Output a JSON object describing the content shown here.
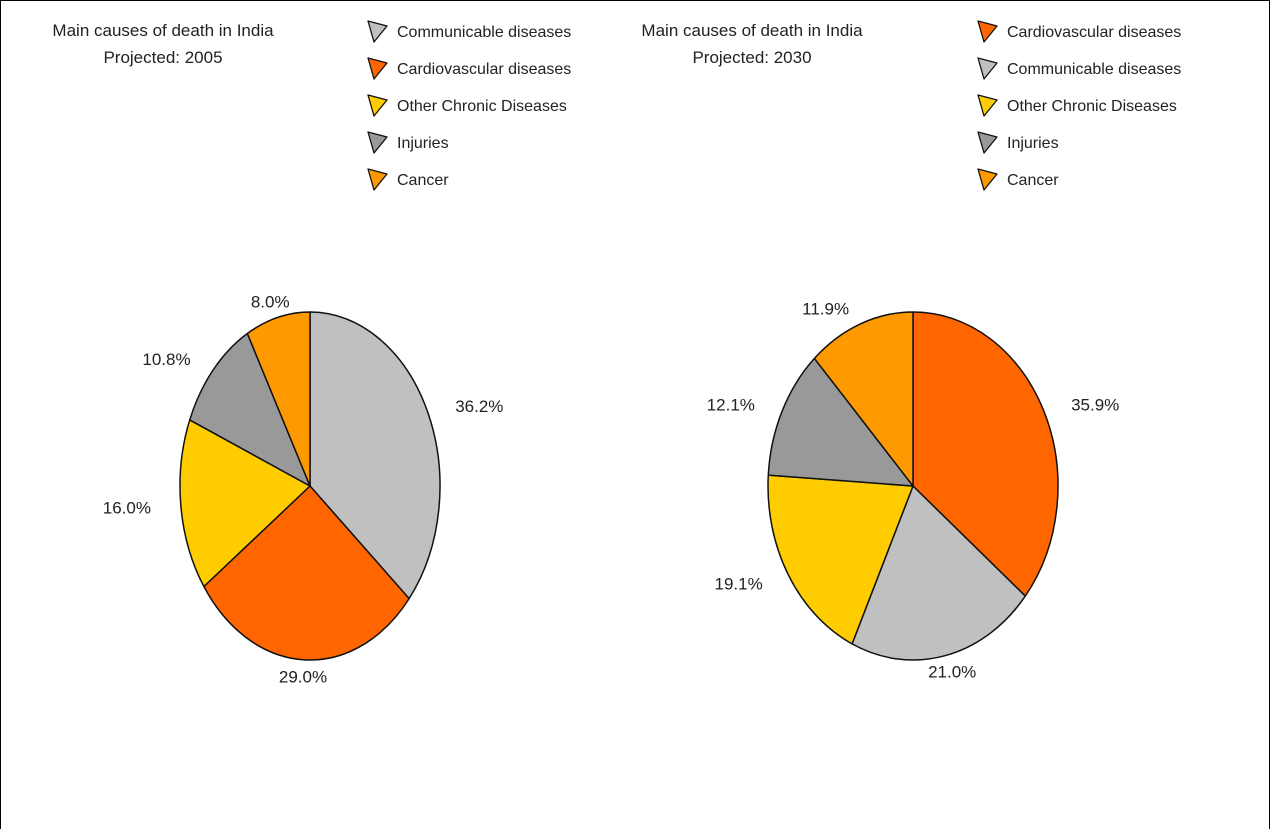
{
  "chart_data": [
    {
      "type": "pie",
      "title": "Main causes of death in India",
      "subtitle": "Projected: 2005",
      "legend_position": "top-right",
      "slices": [
        {
          "label": "Communicable diseases",
          "value": 36.2,
          "display": "36.2%",
          "color": "#c0c0c0"
        },
        {
          "label": "Cardiovascular diseases",
          "value": 29.0,
          "display": "29.0%",
          "color": "#ff6600"
        },
        {
          "label": "Other Chronic Diseases",
          "value": 16.0,
          "display": "16.0%",
          "color": "#ffcc00"
        },
        {
          "label": "Injuries",
          "value": 10.8,
          "display": "10.8%",
          "color": "#999999"
        },
        {
          "label": "Cancer",
          "value": 8.0,
          "display": "8.0%",
          "color": "#ff9900"
        }
      ]
    },
    {
      "type": "pie",
      "title": "Main causes of death in India",
      "subtitle": "Projected: 2030",
      "legend_position": "top-right",
      "slices": [
        {
          "label": "Cardiovascular diseases",
          "value": 35.9,
          "display": "35.9%",
          "color": "#ff6600"
        },
        {
          "label": "Communicable diseases",
          "value": 21.0,
          "display": "21.0%",
          "color": "#c0c0c0"
        },
        {
          "label": "Other Chronic Diseases",
          "value": 19.1,
          "display": "19.1%",
          "color": "#ffcc00"
        },
        {
          "label": "Injuries",
          "value": 12.1,
          "display": "12.1%",
          "color": "#999999"
        },
        {
          "label": "Cancer",
          "value": 11.9,
          "display": "11.9%",
          "color": "#ff9900"
        }
      ]
    }
  ]
}
